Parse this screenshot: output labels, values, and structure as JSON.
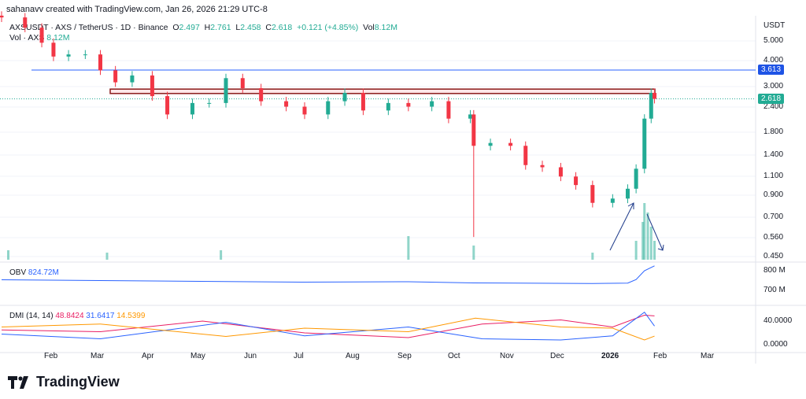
{
  "header": {
    "credit": "sahanavv created with TradingView.com, Jan 26, 2026 21:29 UTC-8",
    "symbol": "AXSUSDT · AXS / TetherUS · 1D · Binance",
    "open_label": "O",
    "open": "2.497",
    "high_label": "H",
    "high": "2.761",
    "low_label": "L",
    "low": "2.458",
    "close_label": "C",
    "close": "2.618",
    "change": "+0.121 (+4.85%)",
    "vol_label": "Vol",
    "vol": "8.12M",
    "volume_line_label": "Vol · AXS",
    "volume_line_value": "8.12M"
  },
  "indicators": {
    "obv": {
      "label": "OBV",
      "value": "824.72M"
    },
    "dmi": {
      "label": "DMI (14, 14)",
      "adx": "48.8424",
      "plus_di": "31.6417",
      "minus_di": "14.5399"
    }
  },
  "footer": {
    "logo": "TradingView"
  },
  "colors": {
    "up": "#22ab94",
    "down": "#f23645",
    "obv": "#2962ff",
    "adx": "#e91e63",
    "plus_di": "#2962ff",
    "minus_di": "#ff9800",
    "level": "#2962ff",
    "zone": "#8b1a1a"
  },
  "chart_data": [
    {
      "type": "candlestick",
      "title": "AXSUSDT · AXS / TetherUS · 1D · Binance",
      "y_unit": "USDT",
      "y_scale": "log",
      "ylim": [
        0.45,
        6.6
      ],
      "y_ticks": [
        "5.000",
        "4.000",
        "3.000",
        "2.400",
        "1.800",
        "1.400",
        "1.100",
        "0.900",
        "0.700",
        "0.560",
        "0.450"
      ],
      "x_ticks": [
        "Feb",
        "Mar",
        "Apr",
        "May",
        "Jun",
        "Jul",
        "Aug",
        "Sep",
        "Oct",
        "Nov",
        "Dec",
        "2026",
        "Feb",
        "Mar"
      ],
      "horizontal_line": {
        "value": 3.613,
        "label": "3.613"
      },
      "resistance_zone": [
        2.78,
        2.92
      ],
      "last_price": {
        "value": 2.618,
        "label": "2.618"
      },
      "closes": [
        [
          "2025-01-01",
          6.5
        ],
        [
          "2025-01-15",
          5.8
        ],
        [
          "2025-01-25",
          4.9
        ],
        [
          "2025-02-01",
          4.2
        ],
        [
          "2025-02-10",
          4.3
        ],
        [
          "2025-02-20",
          4.3
        ],
        [
          "2025-03-01",
          3.6
        ],
        [
          "2025-03-10",
          3.15
        ],
        [
          "2025-03-20",
          3.4
        ],
        [
          "2025-04-01",
          2.7
        ],
        [
          "2025-04-10",
          2.2
        ],
        [
          "2025-04-25",
          2.5
        ],
        [
          "2025-05-05",
          2.5
        ],
        [
          "2025-05-15",
          3.3
        ],
        [
          "2025-05-25",
          2.95
        ],
        [
          "2025-06-05",
          2.55
        ],
        [
          "2025-06-20",
          2.4
        ],
        [
          "2025-07-01",
          2.2
        ],
        [
          "2025-07-15",
          2.55
        ],
        [
          "2025-07-25",
          2.8
        ],
        [
          "2025-08-05",
          2.3
        ],
        [
          "2025-08-20",
          2.5
        ],
        [
          "2025-09-01",
          2.4
        ],
        [
          "2025-09-15",
          2.55
        ],
        [
          "2025-09-25",
          2.1
        ],
        [
          "2025-10-08",
          2.2
        ],
        [
          "2025-10-10",
          1.55
        ],
        [
          "2025-10-20",
          1.6
        ],
        [
          "2025-11-01",
          1.55
        ],
        [
          "2025-11-10",
          1.25
        ],
        [
          "2025-11-20",
          1.22
        ],
        [
          "2025-12-01",
          1.1
        ],
        [
          "2025-12-10",
          1.0
        ],
        [
          "2025-12-20",
          0.82
        ],
        [
          "2026-01-01",
          0.86
        ],
        [
          "2026-01-10",
          0.96
        ],
        [
          "2026-01-15",
          1.2
        ],
        [
          "2026-01-20",
          2.1
        ],
        [
          "2026-01-24",
          2.8
        ],
        [
          "2026-01-26",
          2.618
        ]
      ],
      "notable_low": {
        "date": "2025-10-10",
        "value": 0.56
      }
    },
    {
      "type": "bar",
      "name": "Vol · AXS",
      "values": [
        [
          "2025-01-05",
          2
        ],
        [
          "2025-03-05",
          1.5
        ],
        [
          "2025-05-12",
          2
        ],
        [
          "2025-09-01",
          5
        ],
        [
          "2025-10-10",
          3
        ],
        [
          "2025-12-20",
          1.5
        ],
        [
          "2026-01-15",
          4
        ],
        [
          "2026-01-19",
          8
        ],
        [
          "2026-01-20",
          12
        ],
        [
          "2026-01-22",
          10
        ],
        [
          "2026-01-24",
          7
        ],
        [
          "2026-01-26",
          4
        ]
      ]
    },
    {
      "type": "line",
      "name": "OBV",
      "y_ticks": [
        "800 M",
        "700 M"
      ],
      "ylim": [
        650,
        850
      ],
      "values": [
        [
          "2025-01-01",
          754
        ],
        [
          "2025-04-01",
          748
        ],
        [
          "2025-07-01",
          742
        ],
        [
          "2025-09-01",
          744
        ],
        [
          "2025-10-10",
          738
        ],
        [
          "2025-12-20",
          735
        ],
        [
          "2026-01-10",
          737
        ],
        [
          "2026-01-15",
          755
        ],
        [
          "2026-01-20",
          800
        ],
        [
          "2026-01-26",
          824.72
        ]
      ]
    },
    {
      "type": "line",
      "name": "DMI (14, 14)",
      "y_ticks": [
        "40.0000",
        "0.0000"
      ],
      "ylim": [
        -5,
        60
      ],
      "series": [
        {
          "name": "ADX",
          "values": [
            [
              "2025-01-01",
              25
            ],
            [
              "2025-03-01",
              22
            ],
            [
              "2025-05-01",
              40
            ],
            [
              "2025-07-01",
              20
            ],
            [
              "2025-09-01",
              12
            ],
            [
              "2025-10-15",
              35
            ],
            [
              "2025-12-01",
              42
            ],
            [
              "2026-01-01",
              30
            ],
            [
              "2026-01-20",
              50
            ],
            [
              "2026-01-26",
              48.84
            ]
          ]
        },
        {
          "name": "+DI",
          "values": [
            [
              "2025-01-01",
              18
            ],
            [
              "2025-03-01",
              10
            ],
            [
              "2025-05-15",
              38
            ],
            [
              "2025-07-01",
              15
            ],
            [
              "2025-09-01",
              30
            ],
            [
              "2025-10-15",
              10
            ],
            [
              "2025-12-01",
              8
            ],
            [
              "2026-01-01",
              15
            ],
            [
              "2026-01-20",
              55
            ],
            [
              "2026-01-26",
              31.64
            ]
          ]
        },
        {
          "name": "-DI",
          "values": [
            [
              "2025-01-01",
              30
            ],
            [
              "2025-03-01",
              35
            ],
            [
              "2025-05-15",
              14
            ],
            [
              "2025-07-01",
              28
            ],
            [
              "2025-09-01",
              22
            ],
            [
              "2025-10-11",
              45
            ],
            [
              "2025-12-01",
              30
            ],
            [
              "2026-01-01",
              28
            ],
            [
              "2026-01-20",
              8
            ],
            [
              "2026-01-26",
              14.54
            ]
          ]
        }
      ]
    }
  ]
}
